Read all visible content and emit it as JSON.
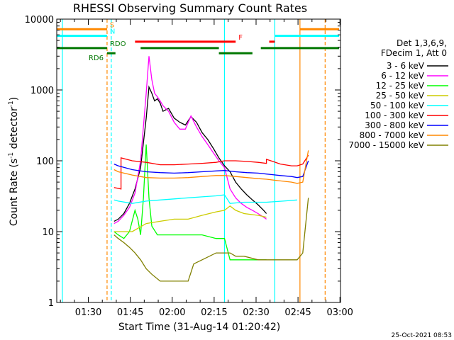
{
  "chart_data": {
    "type": "line",
    "title": "RHESSI Observing Summary Count Rates",
    "xlabel": "Start Time (31-Aug-14 01:20:42)",
    "ylabel": "Count Rate (s",
    "ylabel_sup": "-1",
    "ylabel_tail": " detector",
    "ylabel_sup2": "-1",
    "ylabel_close": ")",
    "yscale": "log",
    "ylim": [
      1,
      10000
    ],
    "y_ticks": [
      {
        "value": 1,
        "label": "1"
      },
      {
        "value": 10,
        "label": "10"
      },
      {
        "value": 100,
        "label": "100"
      },
      {
        "value": 1000,
        "label": "1000"
      },
      {
        "value": 10000,
        "label": "10000"
      }
    ],
    "xlim_minutes": [
      -2.0,
      99.5
    ],
    "x_ticks": [
      {
        "minutes": 9.3,
        "label": "01:30"
      },
      {
        "minutes": 24.3,
        "label": "01:45"
      },
      {
        "minutes": 39.3,
        "label": "02:00"
      },
      {
        "minutes": 54.3,
        "label": "02:15"
      },
      {
        "minutes": 69.3,
        "label": "02:30"
      },
      {
        "minutes": 84.3,
        "label": "02:45"
      },
      {
        "minutes": 99.3,
        "label": "03:00"
      }
    ],
    "legend": {
      "header": [
        "Det 1,3,6,9,",
        "FDecim 1, Att 0"
      ],
      "position": "right"
    },
    "series": [
      {
        "name": "3 - 6 keV",
        "color": "#000000",
        "points": [
          [
            18.5,
            14
          ],
          [
            20,
            15
          ],
          [
            22,
            18
          ],
          [
            24,
            25
          ],
          [
            26,
            40
          ],
          [
            28,
            80
          ],
          [
            30,
            400
          ],
          [
            31,
            1100
          ],
          [
            32,
            900
          ],
          [
            33,
            700
          ],
          [
            34,
            750
          ],
          [
            35,
            650
          ],
          [
            36,
            500
          ],
          [
            38,
            550
          ],
          [
            40,
            400
          ],
          [
            42,
            350
          ],
          [
            44,
            320
          ],
          [
            46,
            420
          ],
          [
            48,
            350
          ],
          [
            50,
            250
          ],
          [
            52,
            200
          ],
          [
            54,
            150
          ],
          [
            56,
            110
          ],
          [
            58,
            85
          ],
          [
            60,
            70
          ],
          [
            62,
            50
          ],
          [
            64,
            40
          ],
          [
            66,
            33
          ],
          [
            68,
            28
          ],
          [
            70,
            24
          ],
          [
            72,
            20
          ],
          [
            73,
            18
          ]
        ]
      },
      {
        "name": "6 - 12 keV",
        "color": "#ff00ff",
        "points": [
          [
            18.5,
            13
          ],
          [
            20,
            14
          ],
          [
            22,
            17
          ],
          [
            24,
            22
          ],
          [
            26,
            35
          ],
          [
            28,
            100
          ],
          [
            30,
            900
          ],
          [
            31,
            3000
          ],
          [
            32,
            1400
          ],
          [
            33,
            900
          ],
          [
            34,
            800
          ],
          [
            35,
            700
          ],
          [
            36,
            600
          ],
          [
            38,
            500
          ],
          [
            40,
            350
          ],
          [
            42,
            280
          ],
          [
            44,
            280
          ],
          [
            46,
            430
          ],
          [
            48,
            300
          ],
          [
            50,
            220
          ],
          [
            52,
            170
          ],
          [
            54,
            130
          ],
          [
            56,
            100
          ],
          [
            58,
            80
          ],
          [
            60,
            40
          ],
          [
            62,
            30
          ],
          [
            64,
            25
          ],
          [
            66,
            22
          ],
          [
            68,
            20
          ],
          [
            70,
            18
          ],
          [
            72,
            16
          ],
          [
            73,
            15
          ]
        ]
      },
      {
        "name": "12 - 25 keV",
        "color": "#00ff00",
        "points": [
          [
            18.5,
            10
          ],
          [
            20,
            9
          ],
          [
            22,
            8
          ],
          [
            24,
            10
          ],
          [
            26,
            20
          ],
          [
            27,
            15
          ],
          [
            28,
            9
          ],
          [
            29,
            30
          ],
          [
            30,
            170
          ],
          [
            31,
            30
          ],
          [
            32,
            12
          ],
          [
            34,
            9
          ],
          [
            36,
            9
          ],
          [
            38,
            9
          ],
          [
            40,
            9
          ],
          [
            45,
            9
          ],
          [
            50,
            9
          ],
          [
            55,
            8
          ],
          [
            58,
            8
          ],
          [
            60,
            4
          ],
          [
            65,
            4
          ],
          [
            70,
            4
          ],
          [
            73,
            4
          ]
        ]
      },
      {
        "name": "25 - 50 keV",
        "color": "#cccc00",
        "points": [
          [
            18.5,
            10
          ],
          [
            20,
            10
          ],
          [
            25,
            10
          ],
          [
            30,
            13
          ],
          [
            35,
            14
          ],
          [
            40,
            15
          ],
          [
            45,
            15
          ],
          [
            50,
            17
          ],
          [
            55,
            19
          ],
          [
            58,
            20
          ],
          [
            60,
            23
          ],
          [
            62,
            20
          ],
          [
            65,
            18
          ],
          [
            70,
            17
          ],
          [
            73,
            16
          ]
        ]
      },
      {
        "name": "50 - 100 keV",
        "color": "#00ffff",
        "points": [
          [
            18.5,
            28
          ],
          [
            20,
            27
          ],
          [
            25,
            25
          ],
          [
            30,
            27
          ],
          [
            35,
            28
          ],
          [
            40,
            29
          ],
          [
            45,
            30
          ],
          [
            50,
            31
          ],
          [
            55,
            32
          ],
          [
            58,
            33
          ],
          [
            60,
            25
          ],
          [
            65,
            26
          ],
          [
            70,
            26
          ],
          [
            73,
            26
          ],
          [
            79,
            27
          ],
          [
            84,
            28
          ]
        ]
      },
      {
        "name": "100 - 300 keV",
        "color": "#ff0000",
        "points": [
          [
            18.5,
            42
          ],
          [
            21,
            40
          ],
          [
            21,
            110
          ],
          [
            25,
            100
          ],
          [
            30,
            95
          ],
          [
            35,
            88
          ],
          [
            40,
            88
          ],
          [
            45,
            90
          ],
          [
            50,
            92
          ],
          [
            55,
            95
          ],
          [
            58,
            100
          ],
          [
            62,
            100
          ],
          [
            66,
            98
          ],
          [
            70,
            95
          ],
          [
            73,
            92
          ],
          [
            73,
            105
          ],
          [
            78,
            90
          ],
          [
            82,
            85
          ],
          [
            84,
            85
          ],
          [
            86,
            90
          ],
          [
            88,
            120
          ]
        ]
      },
      {
        "name": "300 - 800 keV",
        "color": "#0000ff",
        "points": [
          [
            18.5,
            90
          ],
          [
            20,
            85
          ],
          [
            25,
            75
          ],
          [
            30,
            70
          ],
          [
            35,
            68
          ],
          [
            40,
            67
          ],
          [
            45,
            68
          ],
          [
            50,
            70
          ],
          [
            55,
            72
          ],
          [
            58,
            73
          ],
          [
            62,
            70
          ],
          [
            66,
            68
          ],
          [
            70,
            67
          ],
          [
            73,
            65
          ],
          [
            78,
            62
          ],
          [
            82,
            60
          ],
          [
            84,
            58
          ],
          [
            86,
            60
          ],
          [
            88,
            100
          ]
        ]
      },
      {
        "name": "800 - 7000 keV",
        "color": "#ff8800",
        "points": [
          [
            18.5,
            75
          ],
          [
            20,
            70
          ],
          [
            25,
            63
          ],
          [
            30,
            58
          ],
          [
            35,
            57
          ],
          [
            40,
            57
          ],
          [
            45,
            58
          ],
          [
            50,
            60
          ],
          [
            55,
            62
          ],
          [
            58,
            62
          ],
          [
            62,
            60
          ],
          [
            66,
            58
          ],
          [
            70,
            56
          ],
          [
            73,
            55
          ],
          [
            78,
            52
          ],
          [
            82,
            50
          ],
          [
            84,
            48
          ],
          [
            86,
            50
          ],
          [
            88,
            140
          ]
        ]
      },
      {
        "name": "7000 - 15000 keV",
        "color": "#808000",
        "points": [
          [
            18.5,
            9
          ],
          [
            20,
            8
          ],
          [
            22,
            7
          ],
          [
            24,
            6
          ],
          [
            26,
            5
          ],
          [
            28,
            4
          ],
          [
            30,
            3
          ],
          [
            32,
            2.5
          ],
          [
            35,
            2
          ],
          [
            40,
            2
          ],
          [
            45,
            2
          ],
          [
            47,
            3.5
          ],
          [
            50,
            4
          ],
          [
            55,
            5
          ],
          [
            58,
            5
          ],
          [
            60,
            5
          ],
          [
            62,
            4.5
          ],
          [
            65,
            4.5
          ],
          [
            70,
            4
          ],
          [
            73,
            4
          ],
          [
            78,
            4
          ],
          [
            82,
            4
          ],
          [
            84,
            4
          ],
          [
            86,
            5
          ],
          [
            88,
            30
          ]
        ]
      }
    ],
    "top_bars": [
      {
        "label": "S",
        "color": "#ff8800",
        "level": 7200,
        "segments": [
          [
            -2,
            16
          ],
          [
            85,
            99
          ]
        ]
      },
      {
        "label": "N",
        "color": "#00ffff",
        "level": 5800,
        "segments": [
          [
            -2,
            16
          ],
          [
            76,
            99
          ]
        ]
      },
      {
        "label": "F",
        "color": "#ff0000",
        "level": 4800,
        "segments": [
          [
            26,
            62
          ],
          [
            74,
            76
          ]
        ]
      },
      {
        "label": "RDO",
        "color": "#007700",
        "level": 3900,
        "segments": [
          [
            -2,
            16
          ],
          [
            28,
            56
          ],
          [
            71,
            99
          ]
        ]
      },
      {
        "label": "RD6",
        "color": "#007700",
        "level": 3300,
        "segments": [
          [
            16,
            19
          ],
          [
            56,
            68
          ]
        ]
      }
    ],
    "vertical_lines": [
      {
        "minutes": 0.0,
        "color": "#00ffff",
        "style": "solid"
      },
      {
        "minutes": 16.0,
        "color": "#ff8800",
        "style": "dashed"
      },
      {
        "minutes": 17.5,
        "color": "#00ffff",
        "style": "dashed"
      },
      {
        "minutes": 58.0,
        "color": "#00ffff",
        "style": "solid"
      },
      {
        "minutes": 76.0,
        "color": "#00ffff",
        "style": "solid"
      },
      {
        "minutes": 85.0,
        "color": "#ff8800",
        "style": "solid"
      },
      {
        "minutes": 94.0,
        "color": "#ff8800",
        "style": "dashed"
      }
    ],
    "timestamp": "25-Oct-2021 08:53"
  }
}
